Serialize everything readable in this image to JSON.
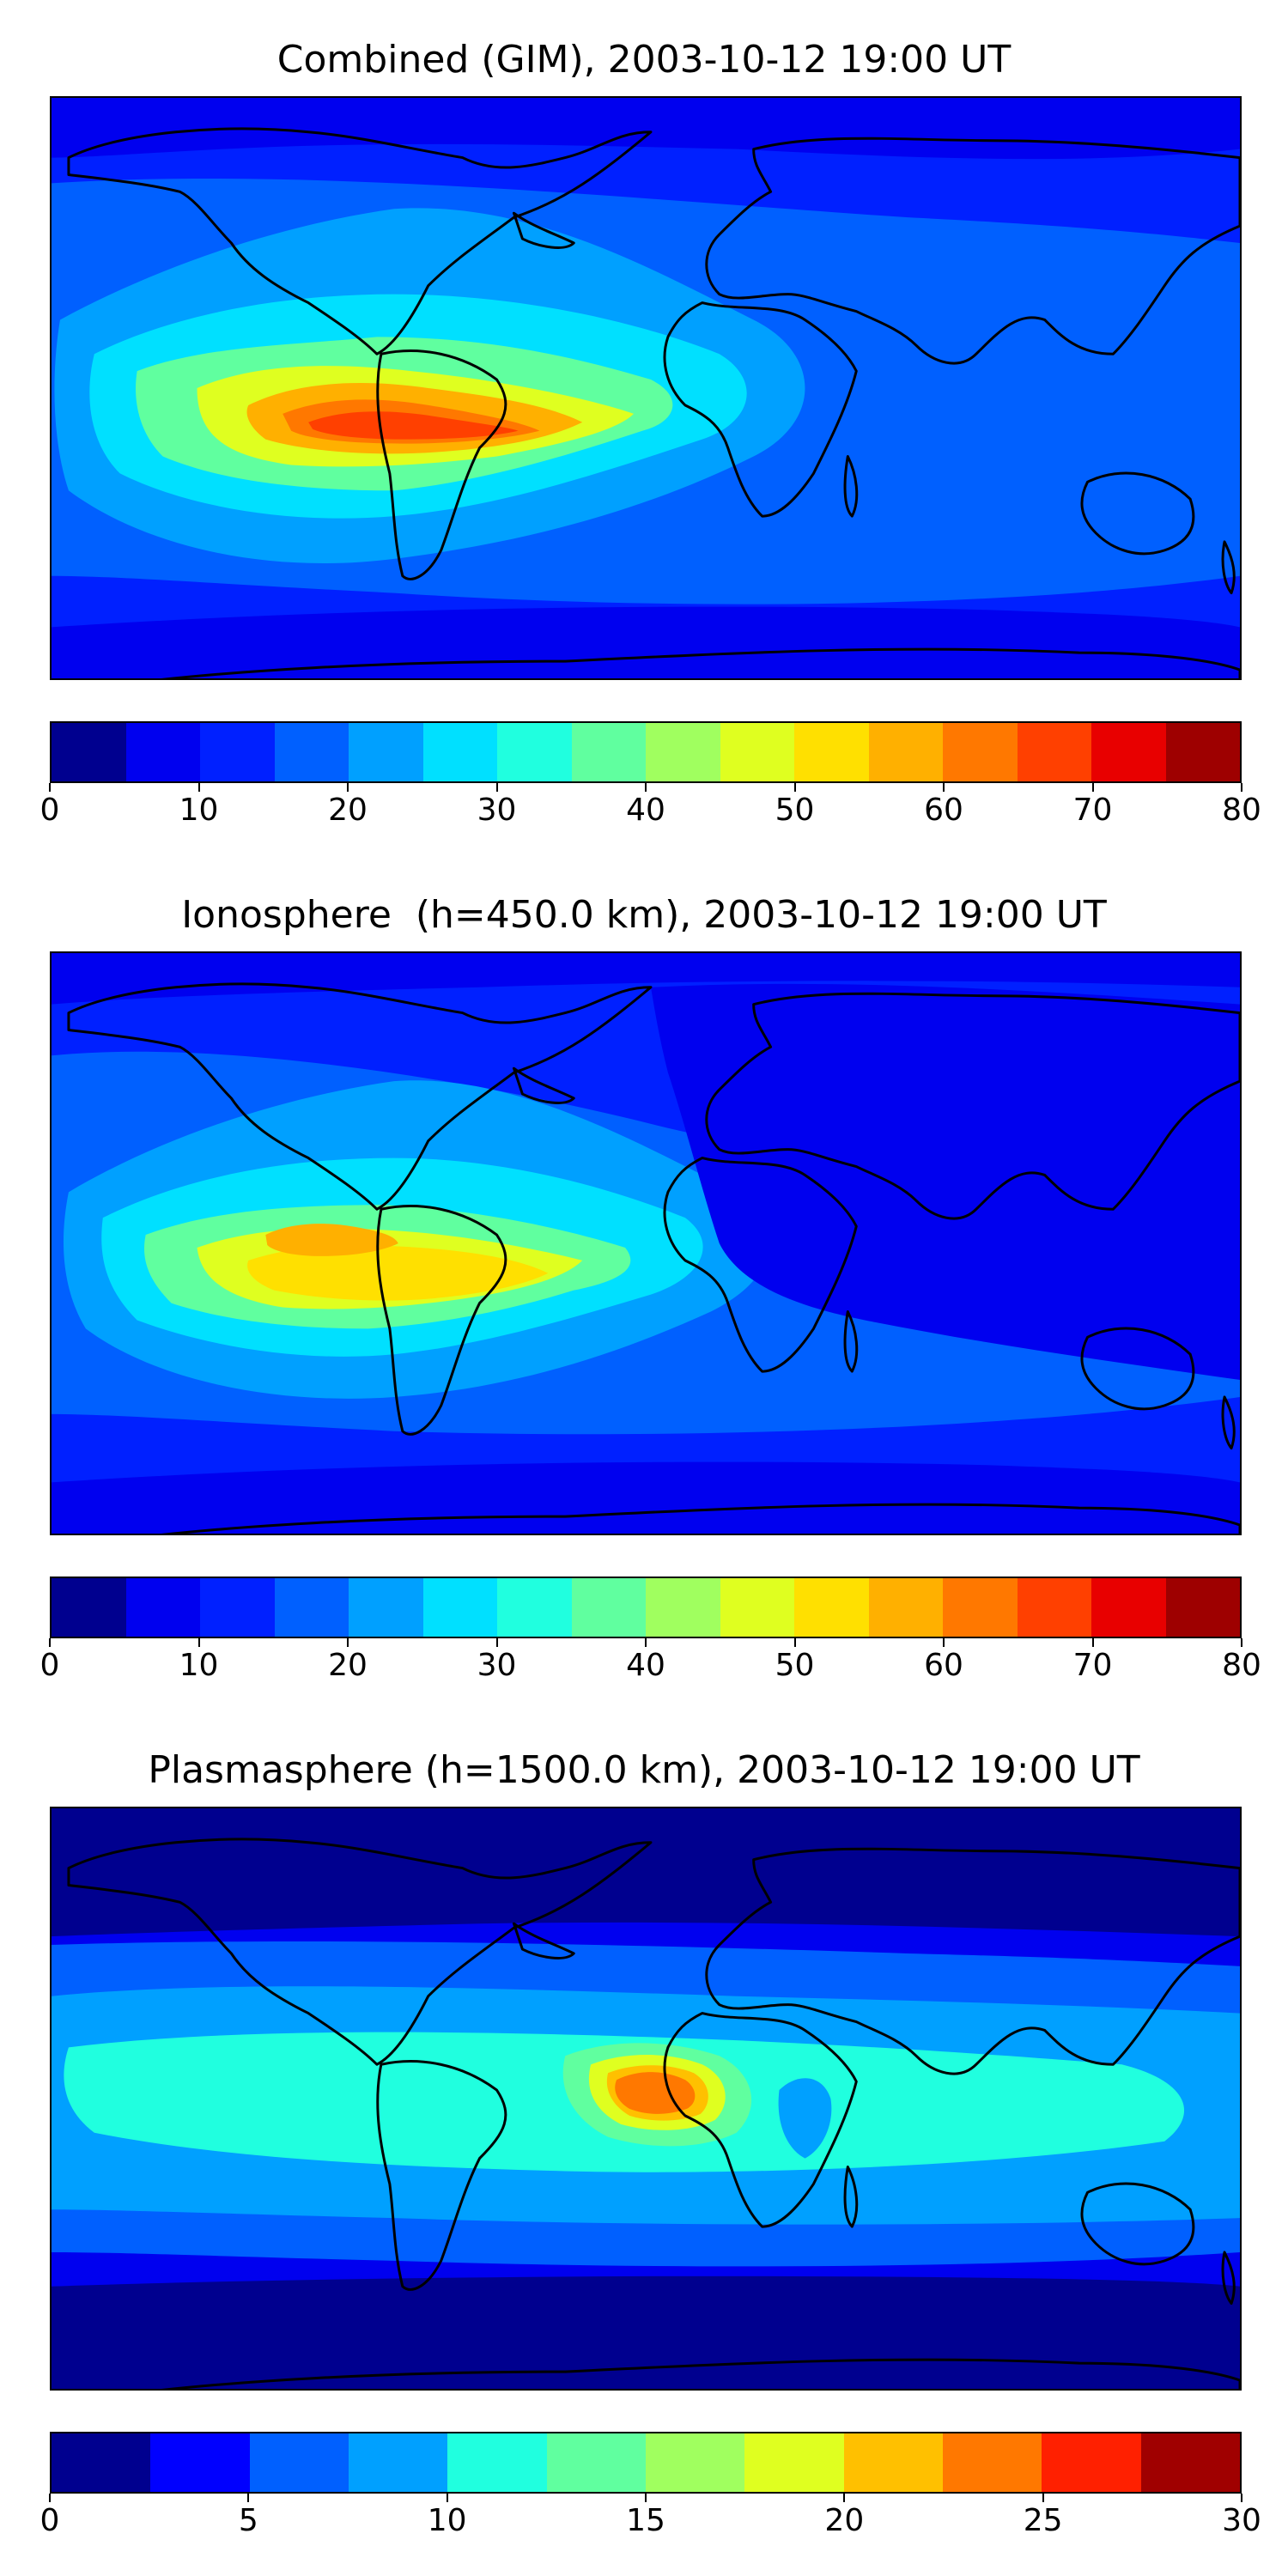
{
  "panels": [
    {
      "title": "Combined (GIM), 2003-10-12 19:00 UT",
      "colorbar": {
        "colors": [
          "#00008f",
          "#0000ef",
          "#0020ff",
          "#0060ff",
          "#00a0ff",
          "#00e0ff",
          "#20ffdf",
          "#60ff9f",
          "#a0ff5f",
          "#dfff20",
          "#ffe000",
          "#ffb000",
          "#ff7800",
          "#ff4000",
          "#e80000",
          "#9e0000"
        ],
        "ticks": [
          "0",
          "10",
          "20",
          "30",
          "40",
          "50",
          "60",
          "70",
          "80"
        ]
      },
      "field_colors": {
        "background": "#0020ff",
        "high_latitude": "#0000ef",
        "mid": "#0060ff",
        "band1": "#00a0ff",
        "band2": "#00e0ff",
        "band3": "#60ff9f",
        "band4": "#dfff20",
        "band5": "#ffb000",
        "band6": "#ff7800",
        "peak": "#ff4000",
        "peak_core": "#e80000"
      }
    },
    {
      "title": "Ionosphere  (h=450.0 km), 2003-10-12 19:00 UT",
      "colorbar": {
        "colors": [
          "#00008f",
          "#0000ef",
          "#0020ff",
          "#0060ff",
          "#00a0ff",
          "#00e0ff",
          "#20ffdf",
          "#60ff9f",
          "#a0ff5f",
          "#dfff20",
          "#ffe000",
          "#ffb000",
          "#ff7800",
          "#ff4000",
          "#e80000",
          "#9e0000"
        ],
        "ticks": [
          "0",
          "10",
          "20",
          "30",
          "40",
          "50",
          "60",
          "70",
          "80"
        ]
      },
      "field_colors": {
        "background": "#0020ff",
        "high_latitude": "#0000ef",
        "mid": "#0060ff",
        "band1": "#00a0ff",
        "band2": "#00e0ff",
        "band3": "#60ff9f",
        "band4": "#dfff20",
        "band5": "#ffe000",
        "band6": "#ffb000",
        "peak": "#ffb000",
        "peak_core": "#ffb000"
      }
    },
    {
      "title": "Plasmasphere (h=1500.0 km), 2003-10-12 19:00 UT",
      "colorbar": {
        "colors": [
          "#00008f",
          "#0000ff",
          "#0060ff",
          "#00a0ff",
          "#20ffdf",
          "#60ff9f",
          "#a0ff5f",
          "#dfff20",
          "#ffc000",
          "#ff7800",
          "#ff2000",
          "#a00000"
        ],
        "ticks": [
          "0",
          "5",
          "10",
          "15",
          "20",
          "25",
          "30"
        ]
      },
      "field_colors": {
        "background": "#0000ef",
        "high_latitude": "#00008f",
        "mid": "#0060ff",
        "band1": "#00a0ff",
        "band2": "#20ffdf",
        "band3": "#60ff9f",
        "band4": "#dfff20",
        "band5": "#ffc000",
        "band6": "#ff7800",
        "peak": "#ff7800",
        "peak_core": "#ff7800"
      }
    }
  ]
}
